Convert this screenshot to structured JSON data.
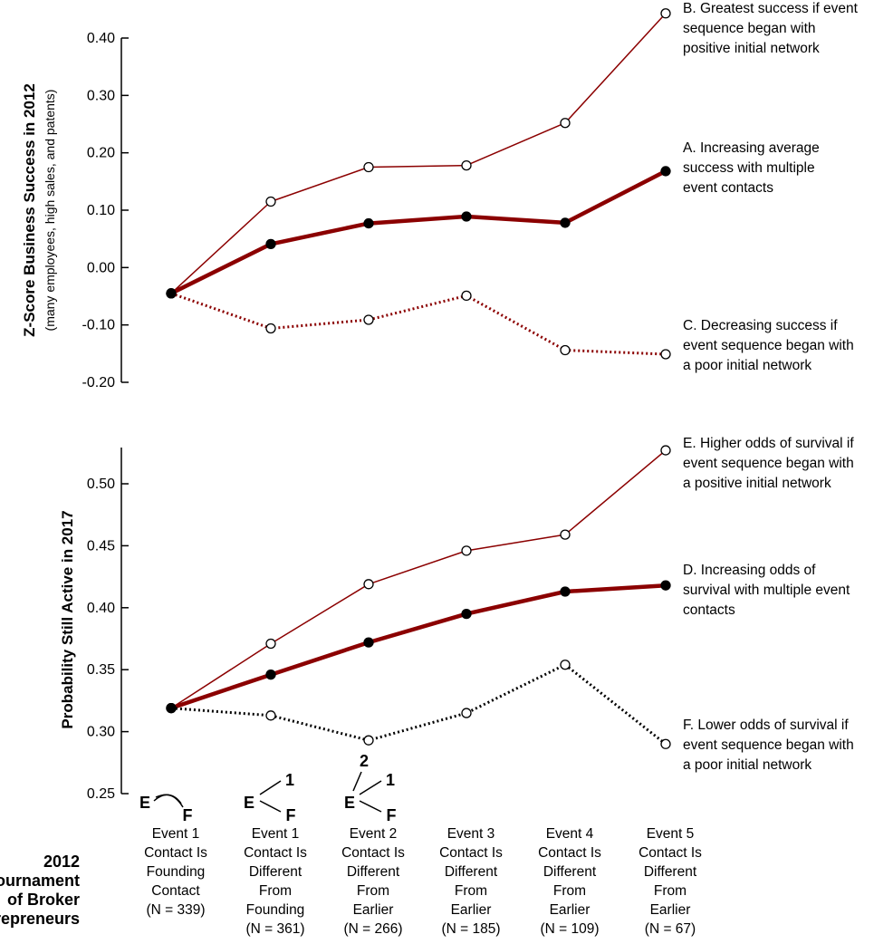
{
  "chart_data": [
    {
      "type": "line",
      "ylabel": "Z-Score Business Success in 2012",
      "ylabel_sub": "(many employees, high sales, and patents)",
      "ylim": [
        -0.2,
        0.4
      ],
      "y_ticks": [
        "0.40",
        "0.30",
        "0.20",
        "0.10",
        "0.00",
        "-0.10",
        "-0.20"
      ],
      "x": [
        1,
        2,
        3,
        4,
        5,
        6
      ],
      "series": [
        {
          "name": "B. Greatest success if event sequence began with positive initial network",
          "key": "B",
          "style": "thin",
          "values": [
            -0.045,
            0.115,
            0.175,
            0.178,
            0.252,
            0.443
          ]
        },
        {
          "name": "A. Increasing average success with multiple event contacts",
          "key": "A",
          "style": "thick",
          "values": [
            -0.045,
            0.041,
            0.077,
            0.089,
            0.078,
            0.168
          ]
        },
        {
          "name": "C. Decreasing success if event sequence began with a poor initial network",
          "key": "C",
          "style": "dotted-red",
          "values": [
            -0.045,
            -0.106,
            -0.091,
            -0.049,
            -0.144,
            -0.151
          ]
        }
      ],
      "annotations": [
        {
          "key": "B",
          "lines": [
            "B. Greatest success if event",
            "sequence began with",
            "positive initial network"
          ]
        },
        {
          "key": "A",
          "lines": [
            "A. Increasing average",
            "success with multiple",
            "event contacts"
          ]
        },
        {
          "key": "C",
          "lines": [
            "C. Decreasing success if",
            "event sequence began with",
            "a poor initial network"
          ]
        }
      ]
    },
    {
      "type": "line",
      "ylabel": "Probability Still Active in 2017",
      "ylim": [
        0.25,
        0.53
      ],
      "y_ticks": [
        "0.50",
        "0.45",
        "0.40",
        "0.35",
        "0.30",
        "0.25"
      ],
      "x": [
        1,
        2,
        3,
        4,
        5,
        6
      ],
      "series": [
        {
          "name": "E. Higher odds of survival if event sequence began with a positive initial network",
          "key": "E",
          "style": "thin",
          "values": [
            0.319,
            0.371,
            0.419,
            0.446,
            0.459,
            0.527
          ]
        },
        {
          "name": "D. Increasing odds of survival with multiple event contacts",
          "key": "D",
          "style": "thick",
          "values": [
            0.319,
            0.346,
            0.372,
            0.395,
            0.413,
            0.418
          ]
        },
        {
          "name": "F. Lower odds of survival if event sequence began with a poor initial network",
          "key": "F",
          "style": "dotted-black",
          "values": [
            0.319,
            0.313,
            0.293,
            0.315,
            0.354,
            0.29
          ]
        }
      ],
      "annotations": [
        {
          "key": "E",
          "lines": [
            "E. Higher odds of survival if",
            "event sequence began with",
            "a positive initial network"
          ]
        },
        {
          "key": "D",
          "lines": [
            "D. Increasing odds of",
            "survival with multiple event",
            "contacts"
          ]
        },
        {
          "key": "F",
          "lines": [
            "F. Lower odds of survival if",
            "event sequence began with",
            "a poor initial network"
          ]
        }
      ]
    }
  ],
  "x_axis": {
    "row_title": [
      "2012",
      "Tournament",
      "of Broker",
      "Entrepreneurs"
    ],
    "categories": [
      [
        "Event 1",
        "Contact Is",
        "Founding",
        "Contact",
        "(N = 339)"
      ],
      [
        "Event 1",
        "Contact Is",
        "Different",
        "From",
        "Founding",
        "(N = 361)"
      ],
      [
        "Event 2",
        "Contact Is",
        "Different",
        "From",
        "Earlier",
        "(N = 266)"
      ],
      [
        "Event 3",
        "Contact Is",
        "Different",
        "From",
        "Earlier",
        "(N = 185)"
      ],
      [
        "Event 4",
        "Contact Is",
        "Different",
        "From",
        "Earlier",
        "(N = 109)"
      ],
      [
        "Event 5",
        "Contact Is",
        "Different",
        "From",
        "Earlier",
        "(N = 67)"
      ]
    ],
    "diagram_labels": {
      "e": "E",
      "f": "F",
      "one": "1",
      "two": "2"
    }
  },
  "colors": {
    "dark_red": "#8b0000",
    "black": "#000000",
    "white": "#ffffff"
  }
}
